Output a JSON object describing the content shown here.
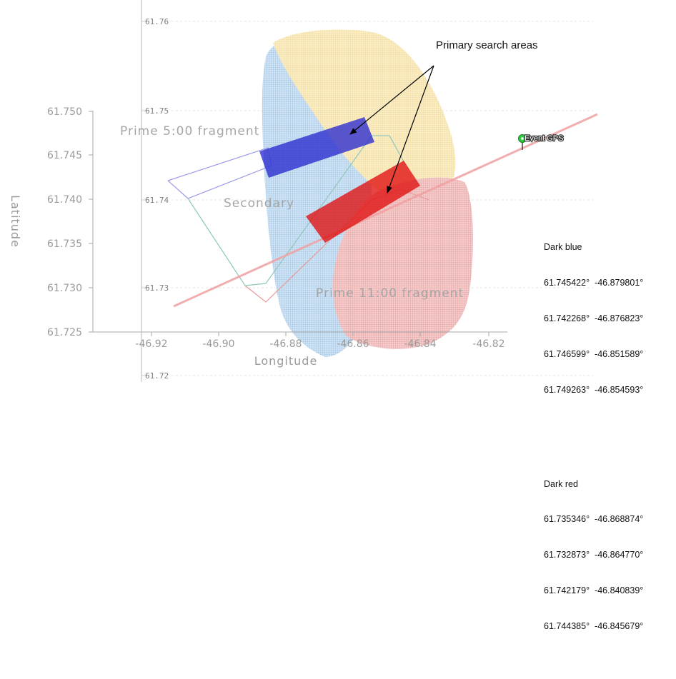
{
  "annotations": {
    "primary_search": "Primary search areas",
    "event_gps": "Event GPS",
    "prime_500": "Prime 5:00 fragment",
    "secondary": "Secondary",
    "prime_1100": "Prime 11:00 fragment"
  },
  "axes": {
    "x_title": "Longitude",
    "y_title": "Latitude",
    "x_ticks": [
      "-46.92",
      "-46.90",
      "-46.88",
      "-46.86",
      "-46.84",
      "-46.82"
    ],
    "y_ticks": [
      "61.725",
      "61.730",
      "61.735",
      "61.740",
      "61.745",
      "61.750"
    ],
    "y_ticks_overlay": [
      "61.76",
      "61.75",
      "61.74",
      "61.73",
      "61.72"
    ]
  },
  "coordinates": {
    "dark_blue": {
      "label": "Dark blue",
      "rows": [
        "61.745422°  -46.879801°",
        "61.742268°  -46.876823°",
        "61.746599°  -46.851589°",
        "61.749263°  -46.854593°"
      ]
    },
    "dark_red": {
      "label": "Dark red",
      "rows": [
        "61.735346°  -46.868874°",
        "61.732873°  -46.864770°",
        "61.742179°  -46.840839°",
        "61.744385°  -46.845679°"
      ]
    }
  },
  "colors": {
    "dark_blue": "#2a2ad0",
    "dark_red": "#e01010",
    "scatter_blue": "#b7d6ee",
    "scatter_yellow": "#f7e7b5",
    "scatter_pink": "#eeb5b5",
    "trajectory": "#f0a0a0",
    "gps_marker": "#2ecc40"
  },
  "icons": {
    "event_marker": "map-pin-icon"
  }
}
